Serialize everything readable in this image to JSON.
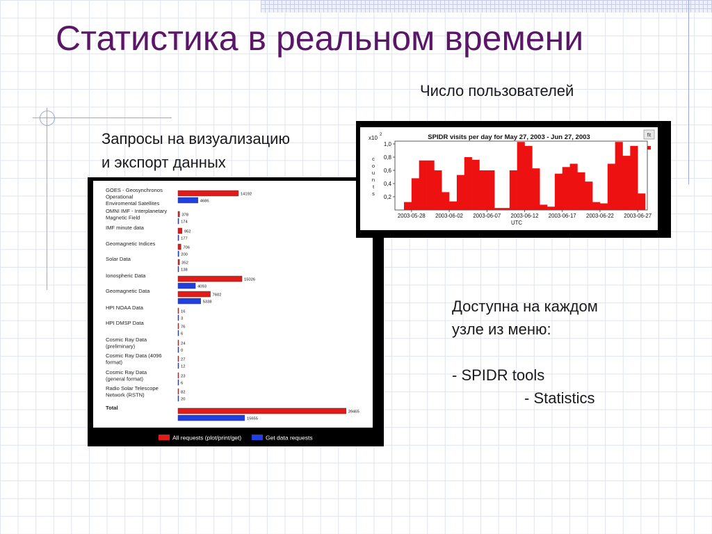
{
  "slide": {
    "title": "Статистика в реальном времени",
    "users_heading": "Число пользователей",
    "requests_heading_line1": "Запросы на визуализацию",
    "requests_heading_line2": "и экспорт данных",
    "menu_line1": "Доступна на каждом",
    "menu_line2": "узле из меню:",
    "menu_item1": "- SPIDR tools",
    "menu_item2": "- Statistics"
  },
  "chart_data": [
    {
      "type": "bar",
      "orientation": "horizontal",
      "title": "",
      "categories": [
        [
          "GOES - Geosynchronos",
          "Operational",
          "Enviromental Satellites"
        ],
        [
          "OMNI IMF - Interplanetary",
          "Magnetic Field"
        ],
        [
          "IMF minute data"
        ],
        [
          "Geomagnetic Indices"
        ],
        [
          "Solar Data"
        ],
        [
          "Ionospheric Data"
        ],
        [
          "Geomagnetic Data"
        ],
        [
          "HPI NOAA Data"
        ],
        [
          "HPI DMSP Data"
        ],
        [
          "Cosmic Ray Data",
          "(preliminary)"
        ],
        [
          "Cosmic Ray Data (4096",
          "format)"
        ],
        [
          "Cosmic Ray Data",
          "(general format)"
        ],
        [
          "Radio Solar Telescope",
          "Network (RSTN)"
        ],
        [
          "Total"
        ]
      ],
      "series": [
        {
          "name": "All requests (plot/print/get)",
          "color": "#e11a1a",
          "values": [
            14192,
            378,
            952,
            706,
            352,
            15026,
            7602,
            16,
            76,
            24,
            27,
            23,
            82,
            39465
          ]
        },
        {
          "name": "Get data requests",
          "color": "#1f3fe0",
          "values": [
            4686,
            174,
            177,
            200,
            138,
            4093,
            5338,
            3,
            6,
            0,
            12,
            6,
            20,
            15655
          ]
        }
      ],
      "xlim": [
        0,
        40000
      ],
      "legend": "bottom"
    },
    {
      "type": "bar",
      "title": "SPIDR visits per day for May 27, 2003 - Jun 27, 2003",
      "ylabel": "counts",
      "xlabel": "UTC",
      "yscale_label": "x10",
      "yscale_exp": "2",
      "fit_label": "fit",
      "ylim": [
        0,
        1.0
      ],
      "yticks": [
        "1,0",
        "0,8",
        "0,6",
        "0,4",
        "0,2"
      ],
      "xticks": [
        "2003-05-28",
        "2003-06-02",
        "2003-06-07",
        "2003-06-12",
        "2003-06-17",
        "2003-06-22",
        "2003-06-27"
      ],
      "bar_color": "#ee1111",
      "values": [
        0.12,
        0.48,
        0.75,
        0.75,
        0.6,
        0.27,
        0.13,
        0.53,
        0.8,
        0.76,
        0.6,
        0.6,
        0.03,
        0.03,
        0.6,
        1.03,
        0.97,
        0.63,
        0.08,
        0.05,
        0.55,
        0.65,
        0.7,
        0.57,
        0.43,
        0.12,
        0.1,
        0.7,
        1.03,
        0.82,
        0.97,
        0.25
      ]
    }
  ]
}
